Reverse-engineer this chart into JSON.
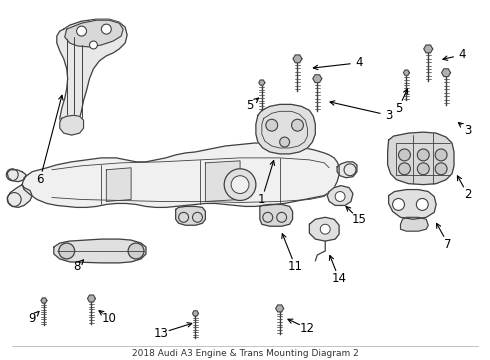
{
  "title": "2018 Audi A3 Engine & Trans Mounting Diagram 2",
  "bg_color": "#ffffff",
  "line_color": "#404040",
  "label_color": "#000000",
  "font_size": 8.5,
  "parts": {
    "subframe_color": "#f0f0f0",
    "bracket_color": "#e8e8e8",
    "dark_color": "#d0d0d0"
  }
}
